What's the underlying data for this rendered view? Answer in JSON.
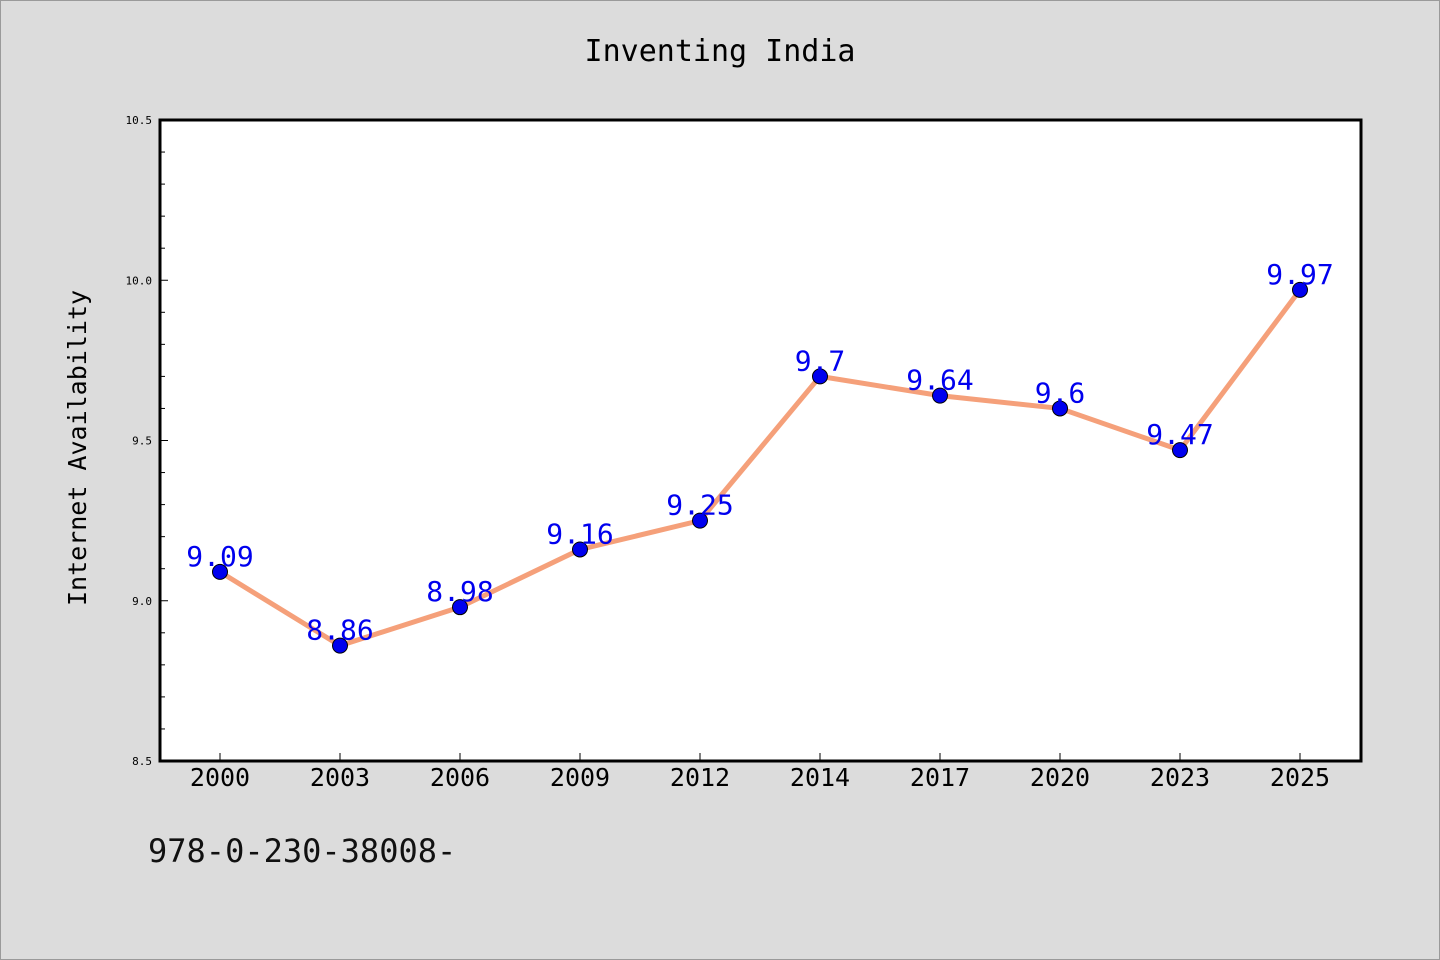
{
  "chart_data": {
    "type": "line",
    "title": "Inventing India",
    "xlabel": "",
    "ylabel": "Internet Availability",
    "categories": [
      "2000",
      "2003",
      "2006",
      "2009",
      "2012",
      "2014",
      "2017",
      "2020",
      "2023",
      "2025"
    ],
    "values": [
      9.09,
      8.86,
      8.98,
      9.16,
      9.25,
      9.7,
      9.64,
      9.6,
      9.47,
      9.97
    ],
    "data_labels": [
      "9.09",
      "8.86",
      "8.98",
      "9.16",
      "9.25",
      "9.7",
      "9.64",
      "9.6",
      "9.47",
      "9.97"
    ],
    "ylim": [
      8.5,
      10.5
    ],
    "y_ticks": [
      "8.5",
      "9.0",
      "9.5",
      "10.0",
      "10.5"
    ],
    "grid": false,
    "line_color": "#f5a07a",
    "marker_color": "#0000ee",
    "label_color": "#0000ee"
  },
  "footer": {
    "code": "978-0-230-38008-"
  }
}
